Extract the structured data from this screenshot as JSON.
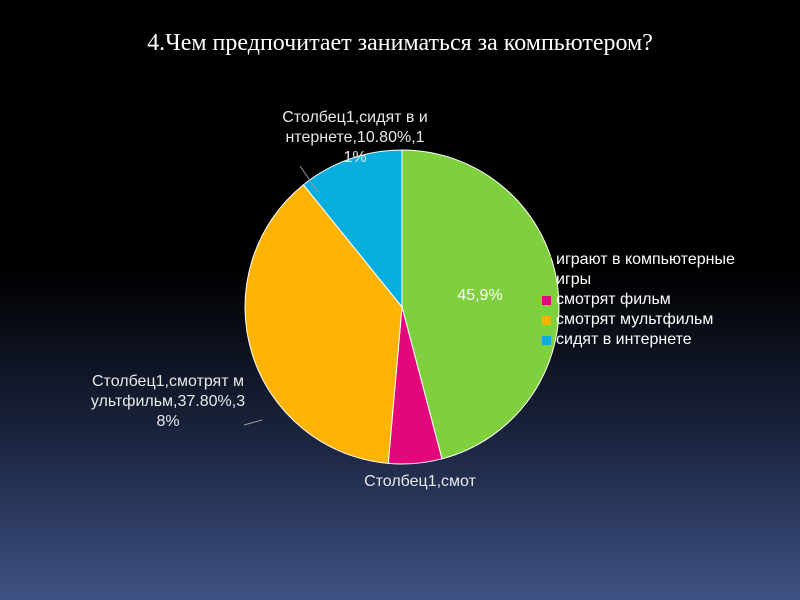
{
  "chart_data": {
    "type": "pie",
    "title": "4.Чем предпочитает заниматься за компьютером?",
    "categories": [
      "играют в компьютерные игры",
      "смотрят фильм",
      "смотрят мультфильм",
      "сидят в интернете"
    ],
    "values": [
      45.9,
      5.5,
      37.8,
      10.8
    ],
    "value_labels": [
      "45,9%",
      "Столбец1,смот",
      "Столбец1,смотрят мультфильм,37.80%,38%",
      "Столбец1,сидят в интернете,10.80%,11%"
    ],
    "colors": [
      "#7fd03d",
      "#e2087c",
      "#ffb405",
      "#07aede"
    ],
    "legend": "right"
  }
}
